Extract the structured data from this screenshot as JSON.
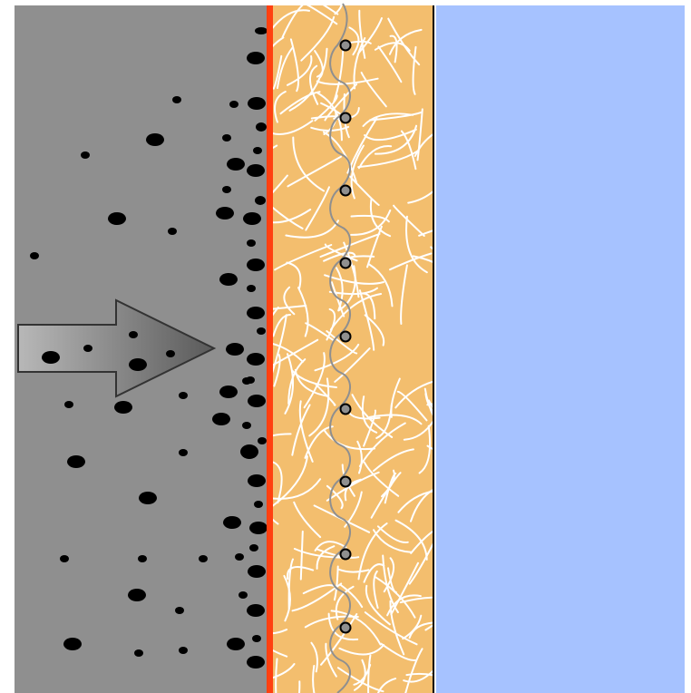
{
  "colors": {
    "background": "#ffffff",
    "feed_region": "#8f8f8f",
    "particle": "#000000",
    "membrane_skin": "#ff4010",
    "support_layer": "#f3be6e",
    "fiber": "#ffffff",
    "pore_channel": "#8f8f8f",
    "pore_bead": "#8f8f8f",
    "pore_bead_outline": "#000000",
    "boundary_line": "#000000",
    "permeate_region": "#a6c2ff",
    "arrow_gradient_start": "#b8b8b8",
    "arrow_gradient_end": "#5a5a5a",
    "arrow_outline": "#333333"
  },
  "icons": {
    "flow_arrow": "right-arrow-icon"
  },
  "regions": [
    "feed-region",
    "membrane-skin",
    "support-layer",
    "permeate-region"
  ]
}
